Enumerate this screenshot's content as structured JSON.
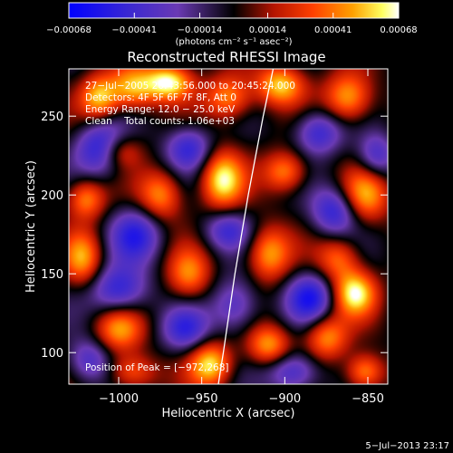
{
  "chart_data": {
    "type": "heatmap",
    "title": "Reconstructed RHESSI Image",
    "xlabel": "Heliocentric X (arcsec)",
    "ylabel": "Heliocentric Y (arcsec)",
    "xlim": [
      -1030,
      -838
    ],
    "ylim": [
      80,
      280
    ],
    "x_ticks": [
      {
        "value": -1000,
        "label": "−1000"
      },
      {
        "value": -950,
        "label": "−950"
      },
      {
        "value": -900,
        "label": "−900"
      },
      {
        "value": -850,
        "label": "−850"
      }
    ],
    "y_ticks": [
      {
        "value": 100,
        "label": "100"
      },
      {
        "value": 150,
        "label": "150"
      },
      {
        "value": 200,
        "label": "200"
      },
      {
        "value": 250,
        "label": "250"
      }
    ],
    "colorbar": {
      "min": -0.00068,
      "max": 0.00068,
      "units_label": "(photons cm⁻² s⁻¹ asec⁻²)",
      "ticks": [
        {
          "value": -0.00068,
          "label": "−0.00068"
        },
        {
          "value": -0.00041,
          "label": "−0.00041"
        },
        {
          "value": -0.00014,
          "label": "−0.00014"
        },
        {
          "value": 0.00014,
          "label": "0.00014"
        },
        {
          "value": 0.00041,
          "label": "0.00041"
        },
        {
          "value": 0.00068,
          "label": "0.00068"
        }
      ],
      "colormap": "blue-purple-black-red-orange-yellow-white"
    },
    "info_lines": [
      "27−Jul−2005 20:43:56.000 to 20:45:24.000",
      "Detectors: 4F 5F 6F 7F 8F, Att 0",
      "Energy Range: 12.0 − 25.0 keV",
      "Clean    Total counts: 1.06e+03"
    ],
    "peak_label": "Position of Peak = [−972,268]",
    "peak_position": [
      -972,
      268
    ],
    "limb_line": [
      [
        -940,
        80
      ],
      [
        -937,
        100
      ],
      [
        -930,
        150
      ],
      [
        -922,
        200
      ],
      [
        -913,
        250
      ],
      [
        -907,
        280
      ]
    ],
    "features": [
      {
        "x": -970,
        "y": 272,
        "amp": 1.0,
        "sx": 10,
        "sy": 8
      },
      {
        "x": -992,
        "y": 268,
        "amp": 0.8,
        "sx": 10,
        "sy": 10
      },
      {
        "x": -1012,
        "y": 262,
        "amp": 0.8,
        "sx": 8,
        "sy": 10
      },
      {
        "x": -934,
        "y": 262,
        "amp": 0.7,
        "sx": 10,
        "sy": 10
      },
      {
        "x": -903,
        "y": 270,
        "amp": 0.85,
        "sx": 10,
        "sy": 9
      },
      {
        "x": -862,
        "y": 262,
        "amp": 0.8,
        "sx": 10,
        "sy": 11
      },
      {
        "x": -938,
        "y": 210,
        "amp": 0.95,
        "sx": 9,
        "sy": 13
      },
      {
        "x": -975,
        "y": 200,
        "amp": 0.7,
        "sx": 9,
        "sy": 11
      },
      {
        "x": -1020,
        "y": 198,
        "amp": 0.7,
        "sx": 8,
        "sy": 9
      },
      {
        "x": -1000,
        "y": 228,
        "amp": 0.65,
        "sx": 9,
        "sy": 8
      },
      {
        "x": -900,
        "y": 215,
        "amp": 0.7,
        "sx": 9,
        "sy": 9
      },
      {
        "x": -852,
        "y": 200,
        "amp": 0.75,
        "sx": 10,
        "sy": 12
      },
      {
        "x": -1022,
        "y": 160,
        "amp": 0.7,
        "sx": 8,
        "sy": 12
      },
      {
        "x": -958,
        "y": 150,
        "amp": 0.65,
        "sx": 9,
        "sy": 11
      },
      {
        "x": -910,
        "y": 163,
        "amp": 0.75,
        "sx": 9,
        "sy": 12
      },
      {
        "x": -868,
        "y": 160,
        "amp": 0.6,
        "sx": 9,
        "sy": 10
      },
      {
        "x": -858,
        "y": 138,
        "amp": 0.95,
        "sx": 9,
        "sy": 10
      },
      {
        "x": -1000,
        "y": 115,
        "amp": 0.7,
        "sx": 10,
        "sy": 10
      },
      {
        "x": -945,
        "y": 93,
        "amp": 0.9,
        "sx": 9,
        "sy": 10
      },
      {
        "x": -910,
        "y": 105,
        "amp": 0.75,
        "sx": 9,
        "sy": 9
      },
      {
        "x": -875,
        "y": 110,
        "amp": 0.7,
        "sx": 9,
        "sy": 10
      },
      {
        "x": -852,
        "y": 88,
        "amp": 0.75,
        "sx": 8,
        "sy": 8
      },
      {
        "x": -992,
        "y": 88,
        "amp": 0.6,
        "sx": 10,
        "sy": 8
      },
      {
        "x": -1010,
        "y": 230,
        "amp": -0.9,
        "sx": 11,
        "sy": 12
      },
      {
        "x": -958,
        "y": 230,
        "amp": -0.7,
        "sx": 10,
        "sy": 10
      },
      {
        "x": -880,
        "y": 240,
        "amp": -0.7,
        "sx": 10,
        "sy": 10
      },
      {
        "x": -990,
        "y": 175,
        "amp": -0.7,
        "sx": 11,
        "sy": 12
      },
      {
        "x": -935,
        "y": 178,
        "amp": -0.6,
        "sx": 10,
        "sy": 9
      },
      {
        "x": -870,
        "y": 190,
        "amp": -0.75,
        "sx": 10,
        "sy": 11
      },
      {
        "x": -1000,
        "y": 140,
        "amp": -0.75,
        "sx": 12,
        "sy": 11
      },
      {
        "x": -930,
        "y": 130,
        "amp": -0.6,
        "sx": 10,
        "sy": 12
      },
      {
        "x": -885,
        "y": 135,
        "amp": -0.8,
        "sx": 10,
        "sy": 11
      },
      {
        "x": -960,
        "y": 115,
        "amp": -0.65,
        "sx": 10,
        "sy": 10
      },
      {
        "x": -895,
        "y": 88,
        "amp": -0.7,
        "sx": 11,
        "sy": 9
      },
      {
        "x": -1018,
        "y": 95,
        "amp": -0.6,
        "sx": 9,
        "sy": 10
      },
      {
        "x": -845,
        "y": 225,
        "amp": -0.6,
        "sx": 8,
        "sy": 10
      }
    ]
  },
  "footer": {
    "date_stamp": "5−Jul−2013 23:17"
  }
}
